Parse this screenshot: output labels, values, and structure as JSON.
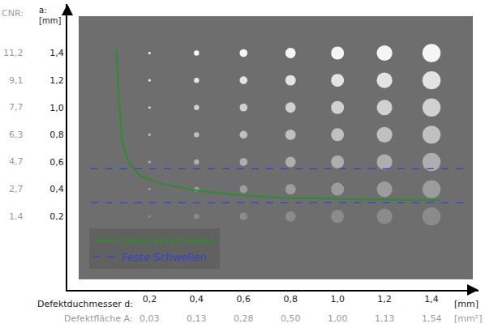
{
  "chart_data": {
    "type": "scatter",
    "x_label": "Defektduchmesser d:",
    "x_unit": "[mm]",
    "x2_label": "Defektfläche A:",
    "x2_unit": "[mm²]",
    "y_label": "a:",
    "y_unit": "[mm]",
    "cnr_label": "CNR:",
    "xlim": [
      -0.15,
      1.6
    ],
    "ylim": [
      -0.34,
      1.76
    ],
    "xticks": [
      {
        "value": 0.2,
        "label": "0,2"
      },
      {
        "value": 0.4,
        "label": "0,4"
      },
      {
        "value": 0.6,
        "label": "0,6"
      },
      {
        "value": 0.8,
        "label": "0,8"
      },
      {
        "value": 1.0,
        "label": "1,0"
      },
      {
        "value": 1.2,
        "label": "1,2"
      },
      {
        "value": 1.4,
        "label": "1,4"
      }
    ],
    "area_ticks": [
      {
        "value": 0.03,
        "label": "0,03"
      },
      {
        "value": 0.13,
        "label": "0,13"
      },
      {
        "value": 0.28,
        "label": "0,28"
      },
      {
        "value": 0.5,
        "label": "0,50"
      },
      {
        "value": 1.0,
        "label": "1,00"
      },
      {
        "value": 1.13,
        "label": "1,13"
      },
      {
        "value": 1.54,
        "label": "1,54"
      }
    ],
    "yticks": [
      {
        "value": 0.2,
        "label": "0,2"
      },
      {
        "value": 0.4,
        "label": "0,4"
      },
      {
        "value": 0.6,
        "label": "0,6"
      },
      {
        "value": 0.8,
        "label": "0,8"
      },
      {
        "value": 1.0,
        "label": "1,0"
      },
      {
        "value": 1.2,
        "label": "1,2"
      },
      {
        "value": 1.4,
        "label": "1,4"
      }
    ],
    "cnr_ticks": [
      {
        "value": 1.4,
        "label": "1,4"
      },
      {
        "value": 2.7,
        "label": "2,7"
      },
      {
        "value": 4.7,
        "label": "4,7"
      },
      {
        "value": 6.3,
        "label": "6,3"
      },
      {
        "value": 7.7,
        "label": "7,7"
      },
      {
        "value": 9.1,
        "label": "9,1"
      },
      {
        "value": 11.2,
        "label": "11,2"
      }
    ],
    "grid": false,
    "legend": "bottom left",
    "defects": {
      "x": [
        0.2,
        0.4,
        0.6,
        0.8,
        1.0,
        1.2,
        1.4,
        0.2,
        0.4,
        0.6,
        0.8,
        1.0,
        1.2,
        1.4,
        0.2,
        0.4,
        0.6,
        0.8,
        1.0,
        1.2,
        1.4,
        0.2,
        0.4,
        0.6,
        0.8,
        1.0,
        1.2,
        1.4,
        0.2,
        0.4,
        0.6,
        0.8,
        1.0,
        1.2,
        1.4,
        0.2,
        0.4,
        0.6,
        0.8,
        1.0,
        1.2,
        1.4,
        0.2,
        0.4,
        0.6,
        0.8,
        1.0,
        1.2,
        1.4
      ],
      "y": [
        0.2,
        0.2,
        0.2,
        0.2,
        0.2,
        0.2,
        0.2,
        0.4,
        0.4,
        0.4,
        0.4,
        0.4,
        0.4,
        0.4,
        0.6,
        0.6,
        0.6,
        0.6,
        0.6,
        0.6,
        0.6,
        0.8,
        0.8,
        0.8,
        0.8,
        0.8,
        0.8,
        0.8,
        1.0,
        1.0,
        1.0,
        1.0,
        1.0,
        1.0,
        1.0,
        1.2,
        1.2,
        1.2,
        1.2,
        1.2,
        1.2,
        1.2,
        1.4,
        1.4,
        1.4,
        1.4,
        1.4,
        1.4,
        1.4
      ]
    },
    "series": [
      {
        "name": "Observerschwelle",
        "color": "#2e8b2e",
        "line_style": "solid",
        "x": [
          0.059,
          0.069,
          0.083,
          0.11,
          0.162,
          0.248,
          0.421,
          0.593,
          0.766,
          1.11,
          1.438
        ],
        "y": [
          1.424,
          1.08,
          0.75,
          0.6,
          0.497,
          0.44,
          0.384,
          0.355,
          0.337,
          0.325,
          0.319
        ]
      },
      {
        "name": "Feste Schwellen",
        "color": "#3344cc",
        "line_style": "dashed",
        "x": [
          -0.05,
          1.55,
          null,
          -0.05,
          1.55
        ],
        "y": [
          0.55,
          0.55,
          null,
          0.3,
          0.3
        ]
      }
    ]
  }
}
